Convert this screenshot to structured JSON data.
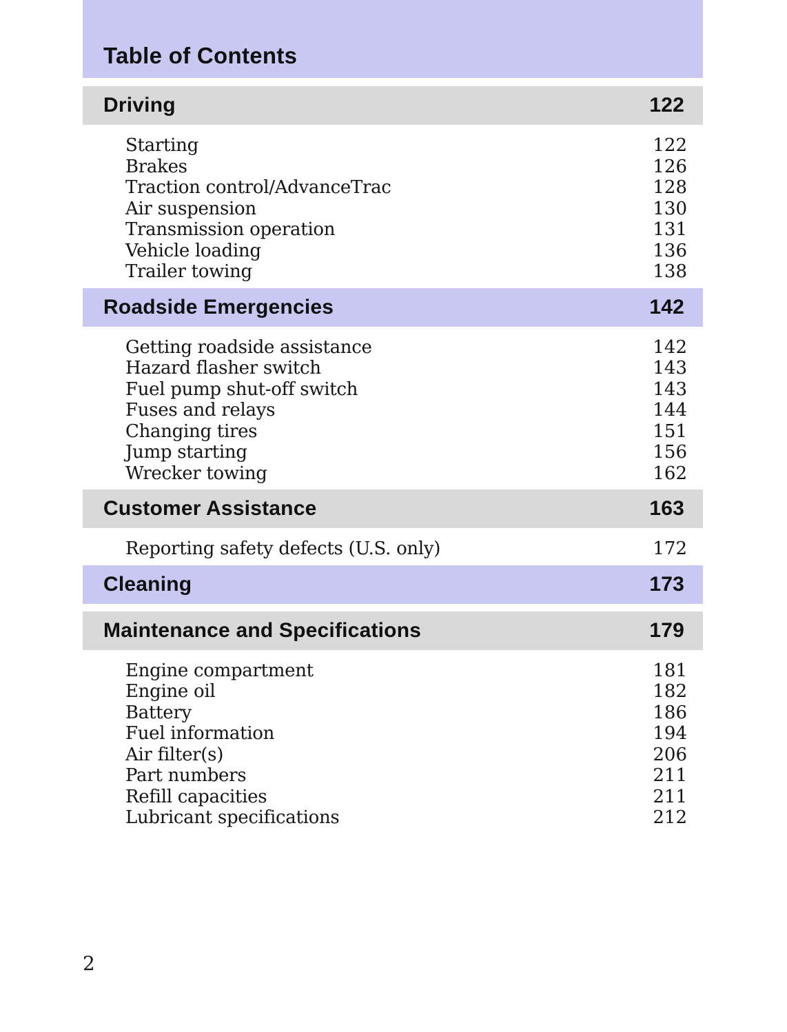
{
  "page": {
    "title": "Table of Contents",
    "footer_page_number": "2"
  },
  "colors": {
    "banner_lavender": "#c8c8f2",
    "section_gray": "#d9d9d9",
    "text": "#141414",
    "page_background": "#ffffff"
  },
  "sections": [
    {
      "label": "Driving",
      "page": "122",
      "style": "gray",
      "items": [
        {
          "label": "Starting",
          "page": "122"
        },
        {
          "label": "Brakes",
          "page": "126"
        },
        {
          "label": "Traction control/AdvanceTrac",
          "page": "128"
        },
        {
          "label": "Air suspension",
          "page": "130"
        },
        {
          "label": "Transmission operation",
          "page": "131"
        },
        {
          "label": "Vehicle loading",
          "page": "136"
        },
        {
          "label": "Trailer towing",
          "page": "138"
        }
      ]
    },
    {
      "label": "Roadside Emergencies",
      "page": "142",
      "style": "lavender",
      "items": [
        {
          "label": "Getting roadside assistance",
          "page": "142"
        },
        {
          "label": "Hazard flasher switch",
          "page": "143"
        },
        {
          "label": "Fuel pump shut-off switch",
          "page": "143"
        },
        {
          "label": "Fuses and relays",
          "page": "144"
        },
        {
          "label": "Changing tires",
          "page": "151"
        },
        {
          "label": "Jump starting",
          "page": "156"
        },
        {
          "label": "Wrecker towing",
          "page": "162"
        }
      ]
    },
    {
      "label": "Customer Assistance",
      "page": "163",
      "style": "gray",
      "items": [
        {
          "label": "Reporting safety defects (U.S. only)",
          "page": "172"
        }
      ]
    },
    {
      "label": "Cleaning",
      "page": "173",
      "style": "lavender",
      "items": []
    },
    {
      "label": "Maintenance and Specifications",
      "page": "179",
      "style": "gray",
      "items": [
        {
          "label": "Engine compartment",
          "page": "181"
        },
        {
          "label": "Engine oil",
          "page": "182"
        },
        {
          "label": "Battery",
          "page": "186"
        },
        {
          "label": "Fuel information",
          "page": "194"
        },
        {
          "label": "Air filter(s)",
          "page": "206"
        },
        {
          "label": "Part numbers",
          "page": "211"
        },
        {
          "label": "Refill capacities",
          "page": "211"
        },
        {
          "label": "Lubricant specifications",
          "page": "212"
        }
      ]
    }
  ]
}
